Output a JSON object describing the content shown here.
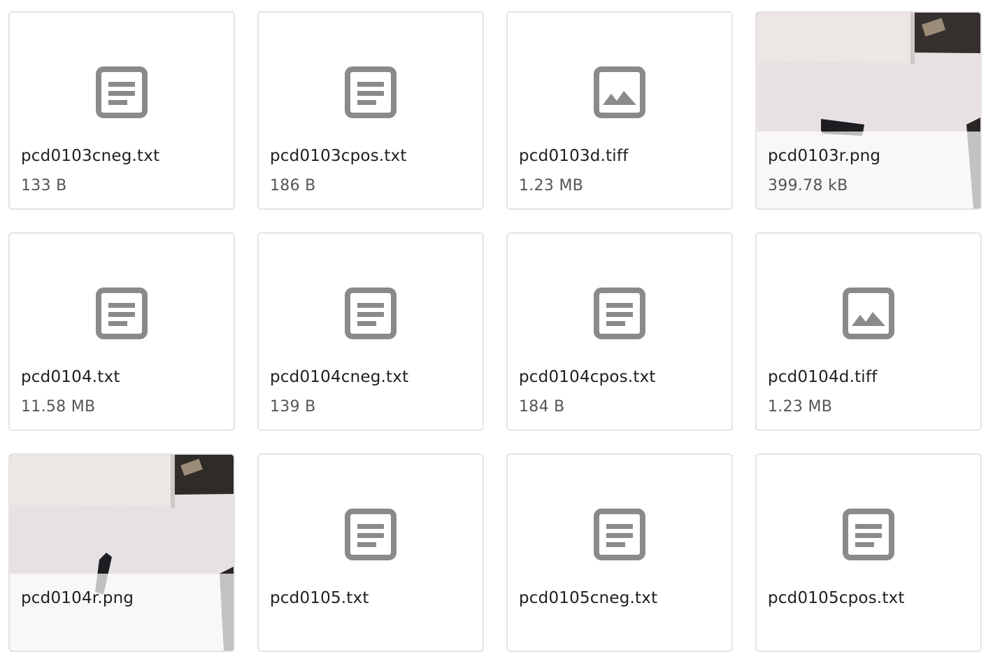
{
  "files": [
    {
      "name": "pcd0103cneg.txt",
      "size": "133 B",
      "kind": "text",
      "icon": "document-icon"
    },
    {
      "name": "pcd0103cpos.txt",
      "size": "186 B",
      "kind": "text",
      "icon": "document-icon"
    },
    {
      "name": "pcd0103d.tiff",
      "size": "1.23 MB",
      "kind": "image",
      "icon": "image-icon"
    },
    {
      "name": "pcd0103r.png",
      "size": "399.78 kB",
      "kind": "thumbnail",
      "icon": "thumbnail-image"
    },
    {
      "name": "pcd0104.txt",
      "size": "11.58 MB",
      "kind": "text",
      "icon": "document-icon"
    },
    {
      "name": "pcd0104cneg.txt",
      "size": "139 B",
      "kind": "text",
      "icon": "document-icon"
    },
    {
      "name": "pcd0104cpos.txt",
      "size": "184 B",
      "kind": "text",
      "icon": "document-icon"
    },
    {
      "name": "pcd0104d.tiff",
      "size": "1.23 MB",
      "kind": "image",
      "icon": "image-icon"
    },
    {
      "name": "pcd0104r.png",
      "size": "",
      "kind": "thumbnail",
      "icon": "thumbnail-image"
    },
    {
      "name": "pcd0105.txt",
      "size": "",
      "kind": "text",
      "icon": "document-icon"
    },
    {
      "name": "pcd0105cneg.txt",
      "size": "",
      "kind": "text",
      "icon": "document-icon"
    },
    {
      "name": "pcd0105cpos.txt",
      "size": "",
      "kind": "text",
      "icon": "document-icon"
    }
  ],
  "colors": {
    "icon": "#8a8a8a",
    "card_border": "#e4e4e4",
    "name_text": "#1f1f1f",
    "size_text": "#555555"
  }
}
